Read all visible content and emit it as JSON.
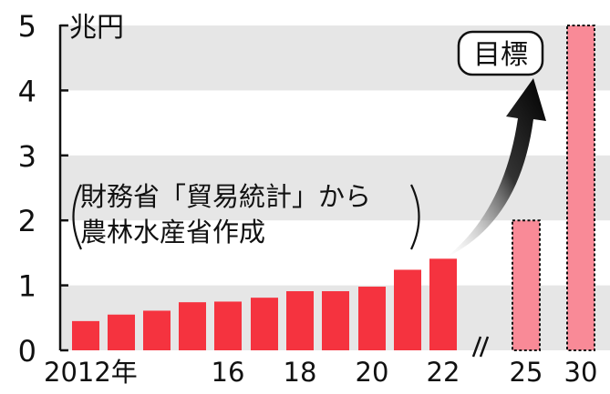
{
  "chart_data": {
    "type": "bar",
    "unit": "兆円",
    "ylim": [
      0,
      5
    ],
    "y_ticks": [
      "0",
      "1",
      "2",
      "3",
      "4",
      "5"
    ],
    "grid": "horizontal bands",
    "categories": [
      "2012",
      "2013",
      "2014",
      "2015",
      "2016",
      "2017",
      "2018",
      "2019",
      "2020",
      "2021",
      "2022",
      "2025",
      "2030"
    ],
    "x_tick_labels": [
      {
        "index": 0,
        "label": "2012年"
      },
      {
        "index": 4,
        "label": "16"
      },
      {
        "index": 6,
        "label": "18"
      },
      {
        "index": 8,
        "label": "20"
      },
      {
        "index": 10,
        "label": "22"
      },
      {
        "index": 11,
        "label": "25"
      },
      {
        "index": 12,
        "label": "30"
      }
    ],
    "series": [
      {
        "kind": "actual",
        "values": [
          0.45,
          0.55,
          0.61,
          0.74,
          0.75,
          0.81,
          0.91,
          0.91,
          0.98,
          1.24,
          1.41,
          null,
          null
        ]
      },
      {
        "kind": "target",
        "values": [
          null,
          null,
          null,
          null,
          null,
          null,
          null,
          null,
          null,
          null,
          null,
          2.0,
          5.0
        ]
      }
    ],
    "annotations": {
      "source_line1": "財務省「貿易統計」から",
      "source_line2": "農林水産省作成",
      "target_label": "目標"
    },
    "colors": {
      "actual": "#f5333f",
      "target": "#f98a97",
      "band": "#e6e6e6",
      "arrow": "#111111"
    }
  }
}
